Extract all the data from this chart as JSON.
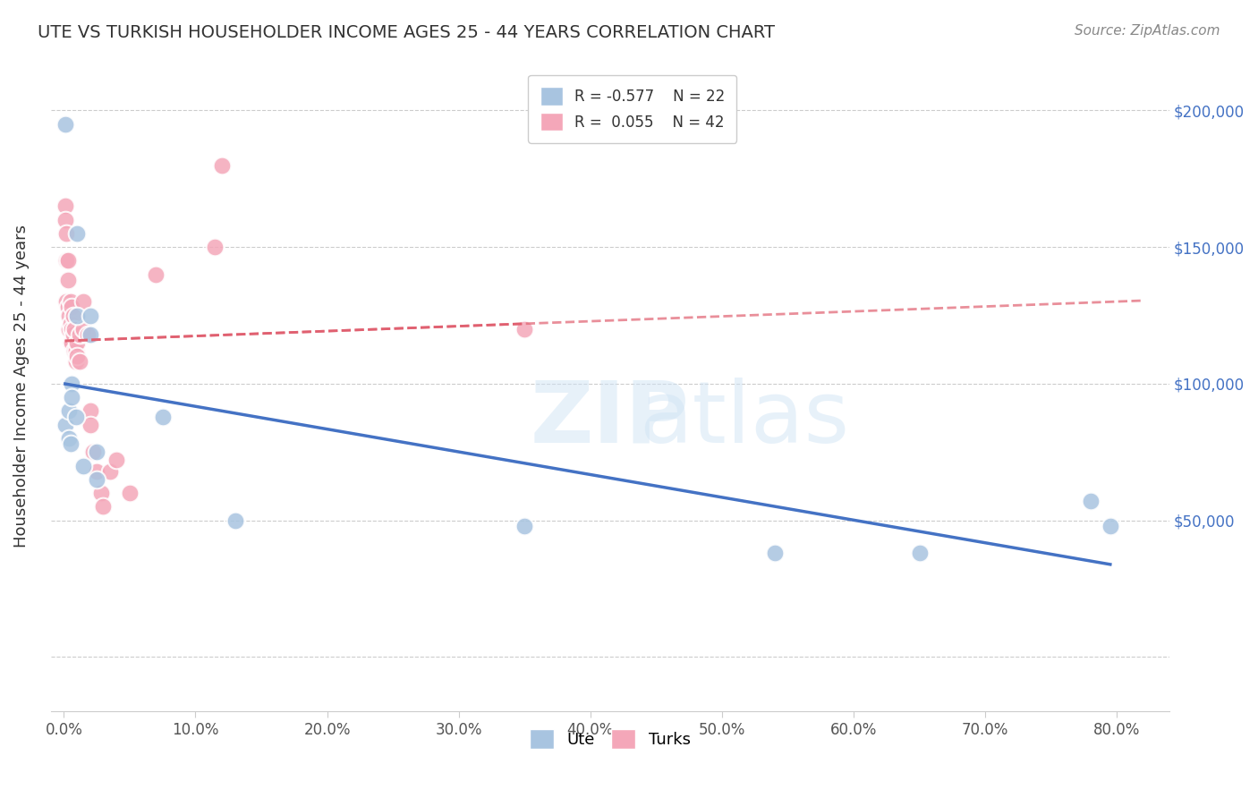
{
  "title": "UTE VS TURKISH HOUSEHOLDER INCOME AGES 25 - 44 YEARS CORRELATION CHART",
  "source": "Source: ZipAtlas.com",
  "xlabel_ticks": [
    "0.0%",
    "10.0%",
    "20.0%",
    "30.0%",
    "40.0%",
    "50.0%",
    "60.0%",
    "70.0%",
    "80.0%"
  ],
  "ylabel": "Householder Income Ages 25 - 44 years",
  "ylabel_ticks": [
    0,
    50000,
    100000,
    150000,
    200000
  ],
  "ylabel_labels": [
    "",
    "$50,000",
    "$100,000",
    "$150,000",
    "$200,000"
  ],
  "xlim": [
    -0.005,
    0.84
  ],
  "ylim": [
    -20000,
    215000
  ],
  "ute_R": "-0.577",
  "ute_N": "22",
  "turks_R": "0.055",
  "turks_N": "42",
  "ute_color": "#a8c4e0",
  "turks_color": "#f4a7b9",
  "ute_line_color": "#4472c4",
  "turks_line_color": "#e06070",
  "watermark": "ZIPatlas",
  "ute_x": [
    0.001,
    0.001,
    0.004,
    0.004,
    0.005,
    0.006,
    0.006,
    0.009,
    0.01,
    0.01,
    0.015,
    0.02,
    0.02,
    0.025,
    0.025,
    0.075,
    0.13,
    0.35,
    0.54,
    0.65,
    0.78,
    0.795
  ],
  "ute_y": [
    195000,
    85000,
    90000,
    80000,
    78000,
    100000,
    95000,
    88000,
    155000,
    125000,
    70000,
    125000,
    118000,
    75000,
    65000,
    88000,
    50000,
    48000,
    38000,
    38000,
    57000,
    48000
  ],
  "turks_x": [
    0.001,
    0.001,
    0.002,
    0.002,
    0.002,
    0.003,
    0.003,
    0.003,
    0.004,
    0.004,
    0.005,
    0.005,
    0.005,
    0.006,
    0.006,
    0.006,
    0.007,
    0.007,
    0.008,
    0.008,
    0.009,
    0.009,
    0.01,
    0.01,
    0.012,
    0.012,
    0.015,
    0.015,
    0.018,
    0.02,
    0.02,
    0.022,
    0.025,
    0.028,
    0.03,
    0.035,
    0.04,
    0.05,
    0.07,
    0.115,
    0.12,
    0.35
  ],
  "turks_y": [
    165000,
    160000,
    155000,
    145000,
    130000,
    145000,
    138000,
    128000,
    125000,
    120000,
    130000,
    122000,
    115000,
    128000,
    120000,
    115000,
    125000,
    118000,
    120000,
    112000,
    112000,
    108000,
    115000,
    110000,
    118000,
    108000,
    130000,
    120000,
    118000,
    90000,
    85000,
    75000,
    68000,
    60000,
    55000,
    68000,
    72000,
    60000,
    140000,
    150000,
    180000,
    120000
  ]
}
